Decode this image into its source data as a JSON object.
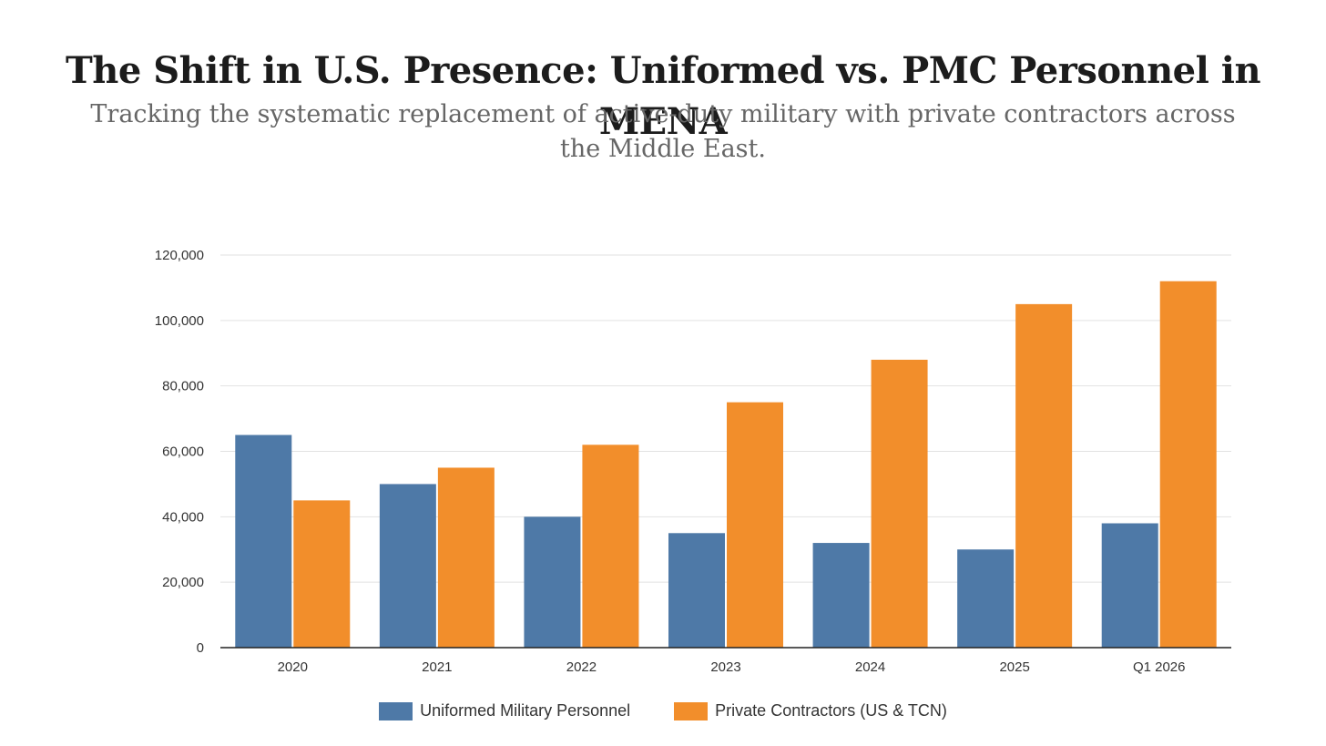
{
  "chart_data": {
    "type": "bar",
    "title": "The Shift in U.S. Presence: Uniformed vs. PMC Personnel in MENA",
    "subtitle": "Tracking the systematic replacement of active-duty military with private contractors across the Middle East.",
    "categories": [
      "2020",
      "2021",
      "2022",
      "2023",
      "2024",
      "2025",
      "Q1 2026"
    ],
    "series": [
      {
        "name": "Uniformed Military Personnel",
        "color": "#4e79a7",
        "values": [
          65000,
          50000,
          40000,
          35000,
          32000,
          30000,
          38000
        ]
      },
      {
        "name": "Private Contractors (US & TCN)",
        "color": "#f28e2b",
        "values": [
          45000,
          55000,
          62000,
          75000,
          88000,
          105000,
          112000
        ]
      }
    ],
    "yticks": [
      "0",
      "20,000",
      "40,000",
      "60,000",
      "80,000",
      "100,000",
      "120,000"
    ],
    "ylim": [
      0,
      120000
    ],
    "grid": true,
    "legend_position": "bottom"
  }
}
